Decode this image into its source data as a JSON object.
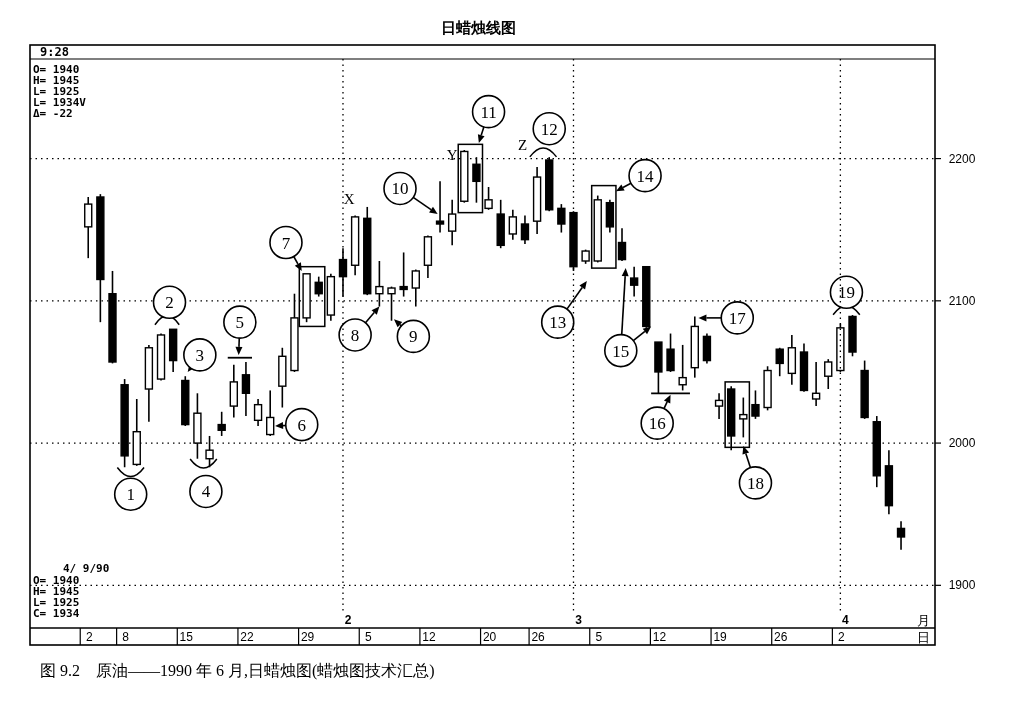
{
  "chart_data": {
    "type": "candlestick",
    "title": "日蜡烛线图",
    "categories": [
      "2",
      null,
      null,
      "8",
      null,
      null,
      null,
      null,
      "15",
      null,
      null,
      null,
      null,
      "22",
      null,
      null,
      null,
      null,
      "29",
      null,
      null,
      null,
      null,
      "5",
      null,
      null,
      null,
      null,
      "12",
      null,
      null,
      null,
      null,
      "20",
      null,
      null,
      null,
      "26",
      null,
      null,
      null,
      null,
      "5",
      null,
      null,
      null,
      null,
      "12",
      null,
      null,
      null,
      null,
      "19",
      null,
      null,
      null,
      null,
      "26",
      null,
      null,
      null,
      null,
      "2",
      null,
      null,
      null,
      null,
      null
    ],
    "ohlc": [
      [
        2152,
        2173,
        2130,
        2168
      ],
      [
        2173,
        2175,
        2085,
        2115
      ],
      [
        2105,
        2121,
        2056,
        2057
      ],
      [
        2041,
        2045,
        1983,
        1991
      ],
      [
        1985,
        2031,
        1984,
        2008
      ],
      [
        2038,
        2069,
        2015,
        2067
      ],
      [
        2045,
        2077,
        2044,
        2076
      ],
      [
        2080,
        2080,
        2050,
        2058
      ],
      [
        2044,
        2047,
        2012,
        2013
      ],
      [
        2000,
        2035,
        1989,
        2021
      ],
      [
        1989,
        2005,
        1983,
        1995
      ],
      [
        2013,
        2022,
        2005,
        2009
      ],
      [
        2026,
        2055,
        2018,
        2043
      ],
      [
        2048,
        2057,
        2019,
        2035
      ],
      [
        2016,
        2031,
        2012,
        2027
      ],
      [
        2006,
        2037,
        2005,
        2018
      ],
      [
        2040,
        2067,
        2025,
        2061
      ],
      [
        2051,
        2105,
        2050,
        2088
      ],
      [
        2088,
        2119,
        2085,
        2119
      ],
      [
        2113,
        2117,
        2103,
        2105
      ],
      [
        2090,
        2119,
        2086,
        2117
      ],
      [
        2129,
        2137,
        2103,
        2117
      ],
      [
        2125,
        2160,
        2118,
        2159
      ],
      [
        2158,
        2166,
        2104,
        2105
      ],
      [
        2105,
        2128,
        2096,
        2110
      ],
      [
        2105,
        2110,
        2086,
        2109
      ],
      [
        2110,
        2134,
        2103,
        2108
      ],
      [
        2109,
        2122,
        2096,
        2121
      ],
      [
        2125,
        2146,
        2116,
        2145
      ],
      [
        2156,
        2184,
        2148,
        2154
      ],
      [
        2149,
        2171,
        2139,
        2161
      ],
      [
        2170,
        2206,
        2169,
        2205
      ],
      [
        2196,
        2201,
        2169,
        2184
      ],
      [
        2165,
        2180,
        2164,
        2171
      ],
      [
        2161,
        2171,
        2137,
        2139
      ],
      [
        2147,
        2164,
        2143,
        2159
      ],
      [
        2154,
        2160,
        2140,
        2143
      ],
      [
        2156,
        2194,
        2147,
        2187
      ],
      [
        2199,
        2201,
        2163,
        2164
      ],
      [
        2165,
        2168,
        2148,
        2154
      ],
      [
        2162,
        2163,
        2121,
        2124
      ],
      [
        2128,
        2136,
        2126,
        2135
      ],
      [
        2128,
        2174,
        2127,
        2171
      ],
      [
        2169,
        2171,
        2148,
        2152
      ],
      [
        2141,
        2151,
        2128,
        2129
      ],
      [
        2116,
        2124,
        2103,
        2111
      ],
      [
        2124,
        2124,
        2081,
        2082
      ],
      [
        2071,
        2071,
        2035,
        2050
      ],
      [
        2066,
        2077,
        2050,
        2051
      ],
      [
        2041,
        2069,
        2037,
        2046
      ],
      [
        2053,
        2089,
        2046,
        2082
      ],
      [
        2075,
        2077,
        2056,
        2058
      ],
      [
        2026,
        2035,
        2017,
        2030
      ],
      [
        2038,
        2040,
        1995,
        2005
      ],
      [
        2017,
        2032,
        2004,
        2020
      ],
      [
        2027,
        2037,
        2017,
        2019
      ],
      [
        2025,
        2054,
        2023,
        2051
      ],
      [
        2066,
        2067,
        2047,
        2056
      ],
      [
        2049,
        2076,
        2041,
        2067
      ],
      [
        2064,
        2070,
        2036,
        2037
      ],
      [
        2031,
        2057,
        2026,
        2035
      ],
      [
        2047,
        2059,
        2038,
        2057
      ],
      [
        2051,
        2084,
        2050,
        2081
      ],
      [
        2089,
        2090,
        2061,
        2064
      ],
      [
        2051,
        2058,
        2017,
        2018
      ],
      [
        2015,
        2019,
        1969,
        1977
      ],
      [
        1984,
        1995,
        1950,
        1956
      ],
      [
        1940,
        1945,
        1925,
        1934
      ]
    ],
    "ylim": [
      1870,
      2270
    ],
    "yticks": [
      1900,
      2000,
      2100,
      2200
    ],
    "grid": "y",
    "annotations": [
      "9:28",
      "O= 1940",
      "H= 1945",
      "L= 1925",
      "L= 1934V",
      "Δ= -22",
      "4/ 9/90",
      "O= 1940",
      "H= 1945",
      "L= 1925",
      "C= 1934",
      "1",
      "2",
      "3",
      "4",
      "5",
      "6",
      "7",
      "8",
      "9",
      "10",
      "11",
      "12",
      "13",
      "14",
      "15",
      "16",
      "17",
      "18",
      "19",
      "X",
      "Y",
      "Z",
      "月",
      "日",
      "图 9.2　原油——1990 年 6 月,日蜡烛图(蜡烛图技术汇总)",
      "2",
      "3",
      "4"
    ]
  }
}
